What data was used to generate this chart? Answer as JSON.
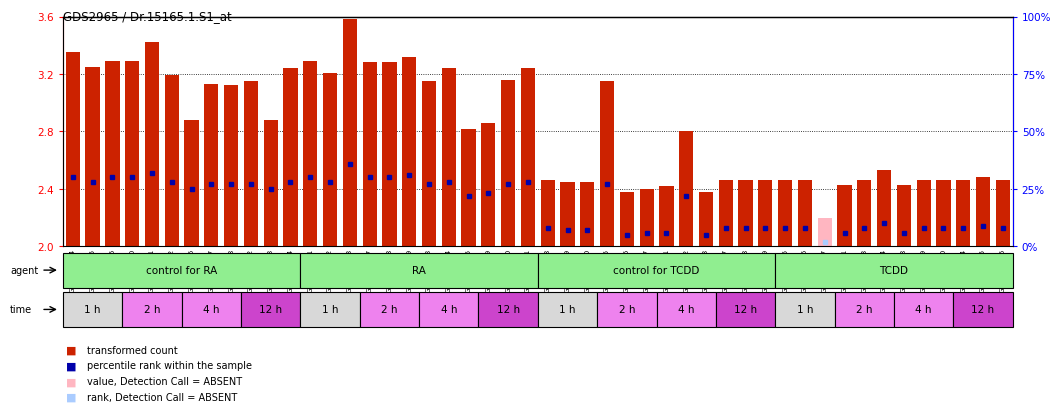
{
  "title": "GDS2965 / Dr.15165.1.S1_at",
  "samples": [
    "GSM228874",
    "GSM228875",
    "GSM228876",
    "GSM228880",
    "GSM228881",
    "GSM228882",
    "GSM228886",
    "GSM228887",
    "GSM228888",
    "GSM228892",
    "GSM228893",
    "GSM228894",
    "GSM228871",
    "GSM228872",
    "GSM228873",
    "GSM228877",
    "GSM228878",
    "GSM228879",
    "GSM228883",
    "GSM228884",
    "GSM228885",
    "GSM228889",
    "GSM228890",
    "GSM228891",
    "GSM228898",
    "GSM228899",
    "GSM228900",
    "GSM228905",
    "GSM228906",
    "GSM228907",
    "GSM228911",
    "GSM228912",
    "GSM228913",
    "GSM228917",
    "GSM228918",
    "GSM228919",
    "GSM228895",
    "GSM228896",
    "GSM228897",
    "GSM228901",
    "GSM228903",
    "GSM228904",
    "GSM228908",
    "GSM228909",
    "GSM228910",
    "GSM228914",
    "GSM228915",
    "GSM228916"
  ],
  "values": [
    3.35,
    3.25,
    3.29,
    3.29,
    3.42,
    3.19,
    2.88,
    3.13,
    3.12,
    3.15,
    2.88,
    3.24,
    3.29,
    3.21,
    3.58,
    3.28,
    3.28,
    3.32,
    3.15,
    3.24,
    2.82,
    2.86,
    3.16,
    3.24,
    2.46,
    2.45,
    2.45,
    3.15,
    2.38,
    2.4,
    2.42,
    2.8,
    2.38,
    2.46,
    2.46,
    2.46,
    2.46,
    2.46,
    2.2,
    2.43,
    2.46,
    2.53,
    2.43,
    2.46,
    2.46,
    2.46,
    2.48,
    2.46
  ],
  "percentile_ranks": [
    30,
    28,
    30,
    30,
    32,
    28,
    25,
    27,
    27,
    27,
    25,
    28,
    30,
    28,
    36,
    30,
    30,
    31,
    27,
    28,
    22,
    23,
    27,
    28,
    8,
    7,
    7,
    27,
    5,
    6,
    6,
    22,
    5,
    8,
    8,
    8,
    8,
    8,
    2,
    6,
    8,
    10,
    6,
    8,
    8,
    8,
    9,
    8
  ],
  "absent_flags": [
    false,
    false,
    false,
    false,
    false,
    false,
    false,
    false,
    false,
    false,
    false,
    false,
    false,
    false,
    false,
    false,
    false,
    false,
    false,
    false,
    false,
    false,
    false,
    false,
    false,
    false,
    false,
    false,
    false,
    false,
    false,
    false,
    false,
    false,
    false,
    false,
    false,
    false,
    true,
    false,
    false,
    false,
    false,
    false,
    false,
    false,
    false,
    false
  ],
  "absent_rank_flags": [
    false,
    false,
    false,
    false,
    false,
    false,
    false,
    false,
    false,
    false,
    false,
    false,
    false,
    false,
    false,
    false,
    false,
    false,
    false,
    false,
    false,
    false,
    false,
    false,
    false,
    false,
    false,
    false,
    false,
    false,
    false,
    false,
    false,
    false,
    false,
    false,
    false,
    false,
    true,
    false,
    false,
    false,
    false,
    false,
    false,
    false,
    false,
    false
  ],
  "time_groups": [
    {
      "label": "1 h",
      "start": 0,
      "end": 3,
      "color": "#D8D8D8"
    },
    {
      "label": "2 h",
      "start": 3,
      "end": 6,
      "color": "#EE82EE"
    },
    {
      "label": "4 h",
      "start": 6,
      "end": 9,
      "color": "#EE82EE"
    },
    {
      "label": "12 h",
      "start": 9,
      "end": 12,
      "color": "#CC44CC"
    },
    {
      "label": "1 h",
      "start": 12,
      "end": 15,
      "color": "#D8D8D8"
    },
    {
      "label": "2 h",
      "start": 15,
      "end": 18,
      "color": "#EE82EE"
    },
    {
      "label": "4 h",
      "start": 18,
      "end": 21,
      "color": "#EE82EE"
    },
    {
      "label": "12 h",
      "start": 21,
      "end": 24,
      "color": "#CC44CC"
    },
    {
      "label": "1 h",
      "start": 24,
      "end": 27,
      "color": "#D8D8D8"
    },
    {
      "label": "2 h",
      "start": 27,
      "end": 30,
      "color": "#EE82EE"
    },
    {
      "label": "4 h",
      "start": 30,
      "end": 33,
      "color": "#EE82EE"
    },
    {
      "label": "12 h",
      "start": 33,
      "end": 36,
      "color": "#CC44CC"
    },
    {
      "label": "1 h",
      "start": 36,
      "end": 39,
      "color": "#D8D8D8"
    },
    {
      "label": "2 h",
      "start": 39,
      "end": 42,
      "color": "#EE82EE"
    },
    {
      "label": "4 h",
      "start": 42,
      "end": 45,
      "color": "#EE82EE"
    },
    {
      "label": "12 h",
      "start": 45,
      "end": 48,
      "color": "#CC44CC"
    }
  ],
  "ymin": 2.0,
  "ymax": 3.6,
  "yticks_left": [
    2.0,
    2.4,
    2.8,
    3.2,
    3.6
  ],
  "yticks_right": [
    0,
    25,
    50,
    75,
    100
  ],
  "bar_color_present": "#CC2200",
  "bar_color_absent": "#FFB6C1",
  "rank_color_present": "#0000AA",
  "rank_color_absent": "#AACCFF",
  "background_color": "#FFFFFF",
  "agent_green": "#90EE90",
  "label_arrow_color": "#555555"
}
